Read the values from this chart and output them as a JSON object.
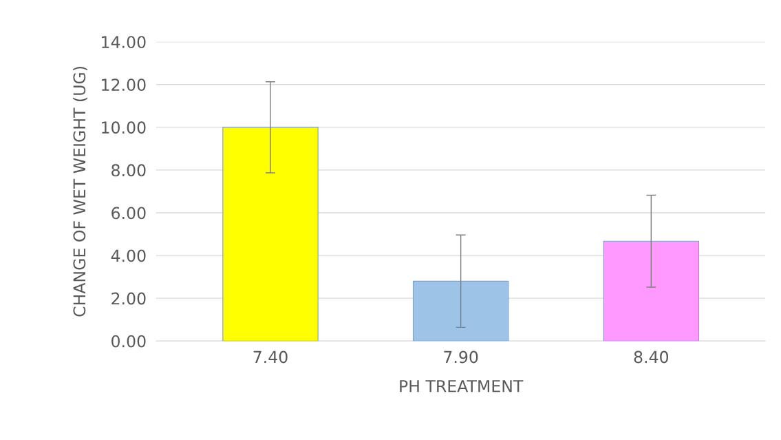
{
  "chart_data": {
    "type": "bar",
    "xlabel": "PH TREATMENT",
    "ylabel": "CHANGE OF WET WEIGHT (UG)",
    "categories": [
      "7.40",
      "7.90",
      "8.40"
    ],
    "values": [
      10.0,
      2.8,
      4.67
    ],
    "colors": [
      "#ffff00",
      "#9dc3e6",
      "#ff99ff"
    ],
    "errors": [
      2.13,
      2.16,
      2.15
    ],
    "ylim": [
      0,
      14
    ],
    "yticks": [
      {
        "value": 0,
        "label": "0.00"
      },
      {
        "value": 2,
        "label": "2.00"
      },
      {
        "value": 4,
        "label": "4.00"
      },
      {
        "value": 6,
        "label": "6.00"
      },
      {
        "value": 8,
        "label": "8.00"
      },
      {
        "value": 10,
        "label": "10.00"
      },
      {
        "value": 12,
        "label": "12.00"
      },
      {
        "value": 14,
        "label": "14.00"
      }
    ],
    "grid": "y"
  }
}
